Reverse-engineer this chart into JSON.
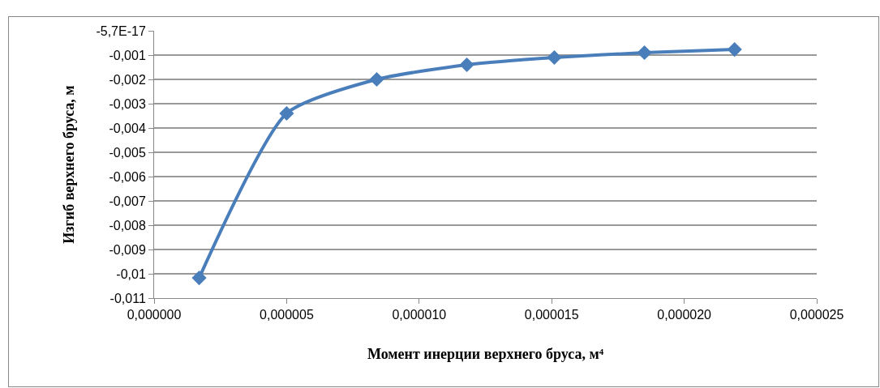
{
  "chart_data": {
    "type": "line",
    "xlabel": "Момент инерции верхнего бруса, м⁴",
    "ylabel": "Изгиб верхнего бруса, м",
    "x": [
      1.7e-06,
      5e-06,
      8.4e-06,
      1.18e-05,
      1.51e-05,
      1.85e-05,
      2.19e-05
    ],
    "series": [
      {
        "color": "#4a7ebb",
        "values": [
          -0.01017,
          -0.0034,
          -0.002,
          -0.0014,
          -0.0011,
          -0.0009,
          -0.00077
        ]
      }
    ],
    "xlim": [
      0,
      2.5e-05
    ],
    "xticks": [
      {
        "value": 0,
        "label": "0,000000"
      },
      {
        "value": 5e-06,
        "label": "0,000005"
      },
      {
        "value": 1e-05,
        "label": "0,000010"
      },
      {
        "value": 1.5e-05,
        "label": "0,000015"
      },
      {
        "value": 2e-05,
        "label": "0,000020"
      },
      {
        "value": 2.5e-05,
        "label": "0,000025"
      }
    ],
    "ylim": [
      -0.011,
      0
    ],
    "yticks": [
      {
        "value": 0,
        "label": "-5,7E-17"
      },
      {
        "value": -0.001,
        "label": "-0,001"
      },
      {
        "value": -0.002,
        "label": "-0,002"
      },
      {
        "value": -0.003,
        "label": "-0,003"
      },
      {
        "value": -0.004,
        "label": "-0,004"
      },
      {
        "value": -0.005,
        "label": "-0,005"
      },
      {
        "value": -0.006,
        "label": "-0,006"
      },
      {
        "value": -0.007,
        "label": "-0,007"
      },
      {
        "value": -0.008,
        "label": "-0,008"
      },
      {
        "value": -0.009,
        "label": "-0,009"
      },
      {
        "value": -0.01,
        "label": "-0,01"
      },
      {
        "value": -0.011,
        "label": "-0,011"
      }
    ],
    "grid": "y",
    "marker": "diamond",
    "line_style": "solid"
  }
}
